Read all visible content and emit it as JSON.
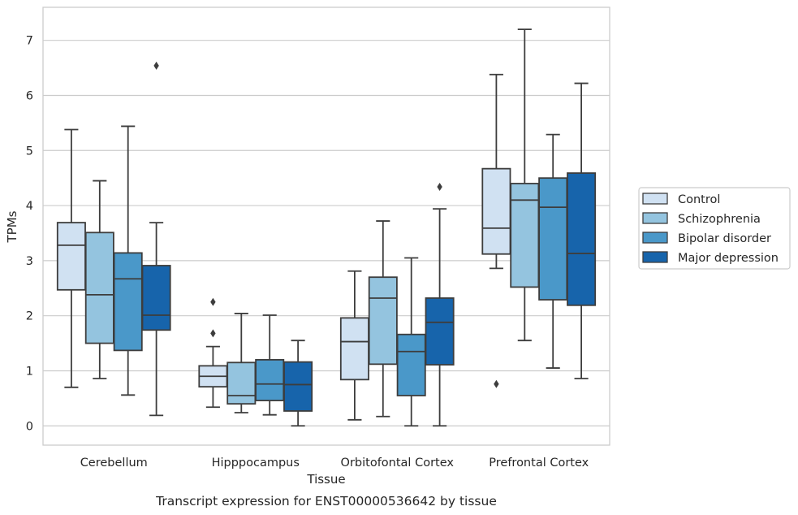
{
  "chart_data": {
    "type": "boxplot",
    "caption": "Transcript expression for ENST00000536642 by tissue",
    "xlabel": "Tissue",
    "ylabel": "TPMs",
    "ylim": [
      -0.35,
      7.6
    ],
    "yticks": [
      0,
      1,
      2,
      3,
      4,
      5,
      6,
      7
    ],
    "grid": true,
    "legend_position": "right",
    "categories": [
      "Cerebellum",
      "Hipppocampus",
      "Orbitofontal Cortex",
      "Prefrontal Cortex"
    ],
    "series": [
      {
        "name": "Control",
        "color": "#d0e1f2",
        "boxes": [
          {
            "whislo": 0.7,
            "q1": 2.47,
            "med": 3.28,
            "q3": 3.69,
            "whishi": 5.38,
            "fliers": []
          },
          {
            "whislo": 0.34,
            "q1": 0.71,
            "med": 0.9,
            "q3": 1.09,
            "whishi": 1.44,
            "fliers": [
              1.68,
              2.25
            ]
          },
          {
            "whislo": 0.11,
            "q1": 0.84,
            "med": 1.53,
            "q3": 1.96,
            "whishi": 2.81,
            "fliers": []
          },
          {
            "whislo": 2.86,
            "q1": 3.12,
            "med": 3.59,
            "q3": 4.67,
            "whishi": 6.38,
            "fliers": [
              0.76
            ]
          }
        ]
      },
      {
        "name": "Schizophrenia",
        "color": "#94c4df",
        "boxes": [
          {
            "whislo": 0.86,
            "q1": 1.5,
            "med": 2.38,
            "q3": 3.51,
            "whishi": 4.45,
            "fliers": []
          },
          {
            "whislo": 0.24,
            "q1": 0.4,
            "med": 0.55,
            "q3": 1.15,
            "whishi": 2.04,
            "fliers": []
          },
          {
            "whislo": 0.17,
            "q1": 1.12,
            "med": 2.32,
            "q3": 2.7,
            "whishi": 3.72,
            "fliers": []
          },
          {
            "whislo": 1.55,
            "q1": 2.52,
            "med": 4.1,
            "q3": 4.4,
            "whishi": 7.2,
            "fliers": []
          }
        ]
      },
      {
        "name": "Bipolar disorder",
        "color": "#4a98c9",
        "boxes": [
          {
            "whislo": 0.56,
            "q1": 1.37,
            "med": 2.67,
            "q3": 3.14,
            "whishi": 5.44,
            "fliers": []
          },
          {
            "whislo": 0.2,
            "q1": 0.46,
            "med": 0.76,
            "q3": 1.2,
            "whishi": 2.01,
            "fliers": []
          },
          {
            "whislo": 0.0,
            "q1": 0.55,
            "med": 1.35,
            "q3": 1.66,
            "whishi": 3.05,
            "fliers": []
          },
          {
            "whislo": 1.05,
            "q1": 2.29,
            "med": 3.97,
            "q3": 4.5,
            "whishi": 5.29,
            "fliers": []
          }
        ]
      },
      {
        "name": "Major depression",
        "color": "#1764ab",
        "boxes": [
          {
            "whislo": 0.19,
            "q1": 1.74,
            "med": 2.01,
            "q3": 2.91,
            "whishi": 3.69,
            "fliers": [
              6.54
            ]
          },
          {
            "whislo": 0.0,
            "q1": 0.27,
            "med": 0.75,
            "q3": 1.16,
            "whishi": 1.55,
            "fliers": []
          },
          {
            "whislo": 0.0,
            "q1": 1.11,
            "med": 1.88,
            "q3": 2.32,
            "whishi": 3.94,
            "fliers": [
              4.34
            ]
          },
          {
            "whislo": 0.86,
            "q1": 2.19,
            "med": 3.13,
            "q3": 4.59,
            "whishi": 6.22,
            "fliers": []
          }
        ]
      }
    ]
  }
}
